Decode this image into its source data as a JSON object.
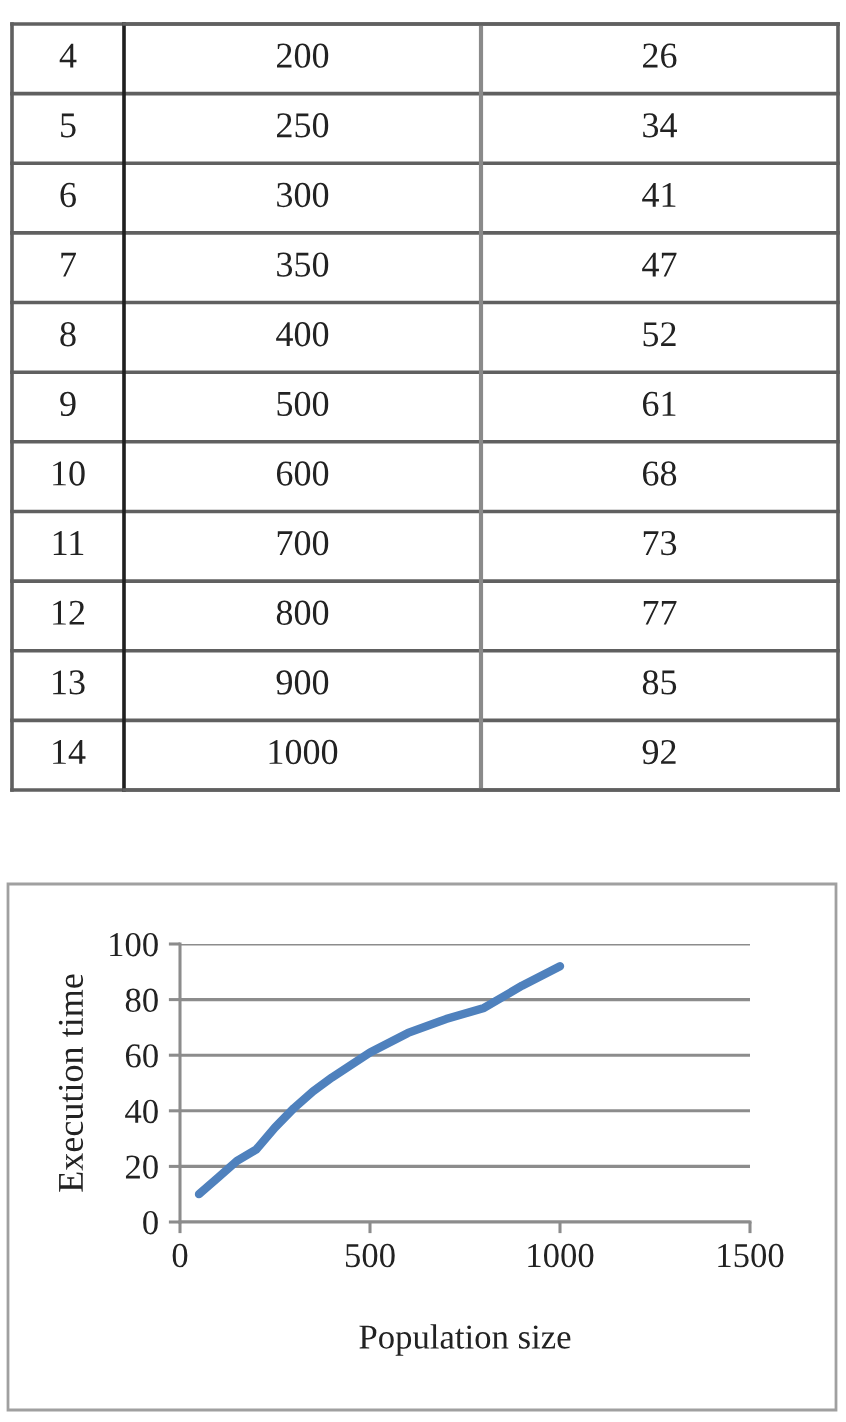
{
  "chart_data": [
    {
      "type": "heatmap",
      "categories": [
        null,
        null
      ],
      "y_categories": [
        "4",
        "5",
        "6",
        "7",
        "8",
        "9",
        "10",
        "11",
        "12",
        "13",
        "14"
      ],
      "cells": [
        [
          200,
          26
        ],
        [
          250,
          34
        ],
        [
          300,
          41
        ],
        [
          350,
          47
        ],
        [
          400,
          52
        ],
        [
          500,
          61
        ],
        [
          600,
          68
        ],
        [
          700,
          73
        ],
        [
          800,
          77
        ],
        [
          900,
          85
        ],
        [
          1000,
          92
        ]
      ],
      "data_labels": true
    },
    {
      "type": "line",
      "xlabel": "Population size",
      "ylabel": "Execution time",
      "x": [
        50,
        100,
        150,
        200,
        250,
        300,
        350,
        400,
        500,
        600,
        700,
        800,
        900,
        1000
      ],
      "values": [
        10,
        16,
        22,
        26,
        34,
        41,
        47,
        52,
        61,
        68,
        73,
        77,
        85,
        92
      ],
      "color": "#4f81bd",
      "line_style": "solid",
      "xlim": [
        0,
        1500
      ],
      "xticks": [
        0,
        500,
        1000,
        1500
      ],
      "ylim": [
        0,
        100
      ],
      "yticks": [
        0,
        20,
        40,
        60,
        80,
        100
      ],
      "grid": "y"
    }
  ]
}
